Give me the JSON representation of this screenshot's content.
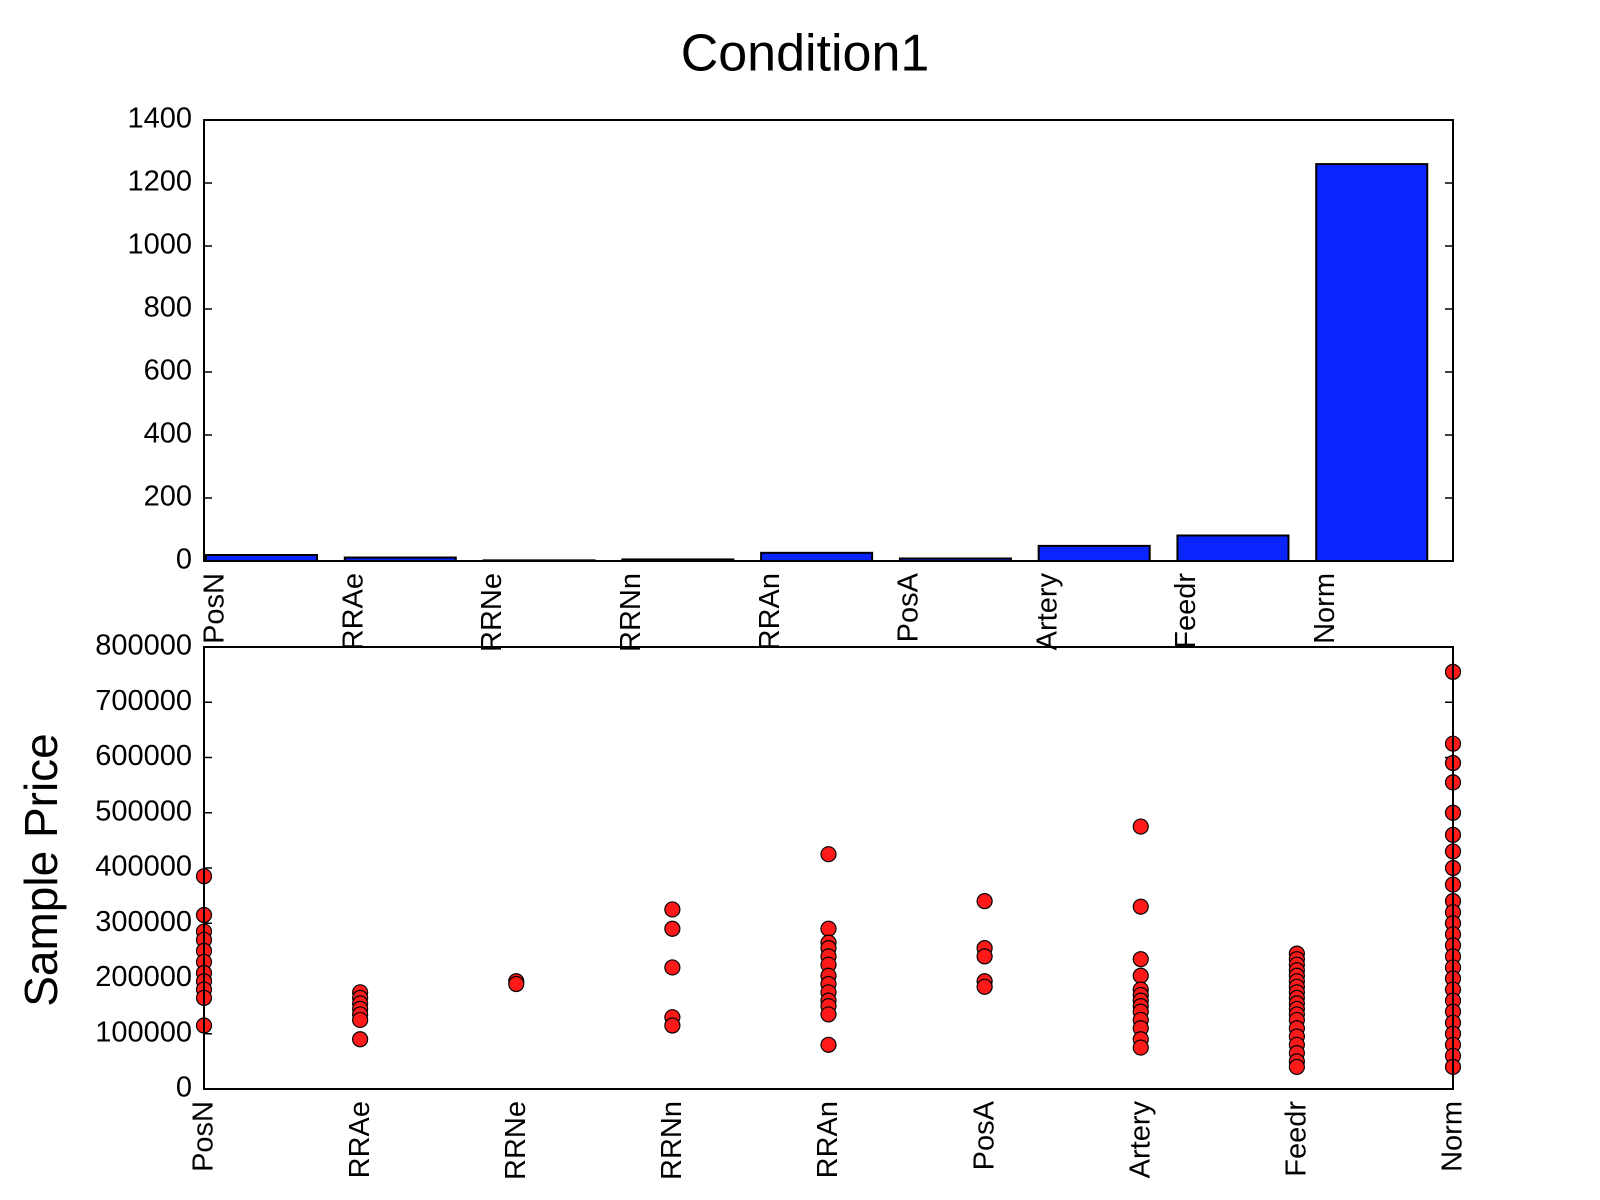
{
  "chart_data": [
    {
      "type": "bar",
      "title": "Condition1",
      "categories": [
        "PosN",
        "RRAe",
        "RRNe",
        "RRNn",
        "RRAn",
        "PosA",
        "Artery",
        "Feedr",
        "Norm"
      ],
      "values": [
        19,
        11,
        2,
        5,
        26,
        8,
        48,
        81,
        1260
      ],
      "color": "#0a24ff",
      "ylim": [
        0,
        1400
      ],
      "yticks": [
        0,
        200,
        400,
        600,
        800,
        1000,
        1200,
        1400
      ]
    },
    {
      "type": "scatter",
      "y_label": "Sample Price",
      "categories": [
        "PosN",
        "RRAe",
        "RRNe",
        "RRNn",
        "RRAn",
        "PosA",
        "Artery",
        "Feedr",
        "Norm"
      ],
      "values": [
        [
          385000,
          315000,
          285000,
          270000,
          250000,
          230000,
          210000,
          195000,
          180000,
          165000,
          115000
        ],
        [
          175000,
          165000,
          155000,
          145000,
          135000,
          125000,
          90000
        ],
        [
          195000,
          190000
        ],
        [
          325000,
          290000,
          220000,
          130000,
          115000
        ],
        [
          425000,
          290000,
          265000,
          255000,
          240000,
          225000,
          205000,
          190000,
          175000,
          160000,
          150000,
          135000,
          80000
        ],
        [
          340000,
          255000,
          240000,
          195000,
          185000
        ],
        [
          475000,
          330000,
          235000,
          205000,
          180000,
          170000,
          160000,
          150000,
          140000,
          125000,
          110000,
          90000,
          75000
        ],
        [
          245000,
          235000,
          225000,
          215000,
          205000,
          195000,
          185000,
          175000,
          165000,
          155000,
          145000,
          135000,
          125000,
          110000,
          95000,
          80000,
          65000,
          50000,
          40000
        ],
        [
          755000,
          625000,
          590000,
          555000,
          500000,
          460000,
          430000,
          400000,
          370000,
          340000,
          320000,
          300000,
          280000,
          260000,
          240000,
          220000,
          200000,
          180000,
          160000,
          140000,
          120000,
          100000,
          80000,
          60000,
          40000
        ]
      ],
      "color": "#ff1a1a",
      "ylim": [
        0,
        800000
      ],
      "yticks": [
        0,
        100000,
        200000,
        300000,
        400000,
        500000,
        600000,
        700000,
        800000
      ]
    }
  ]
}
